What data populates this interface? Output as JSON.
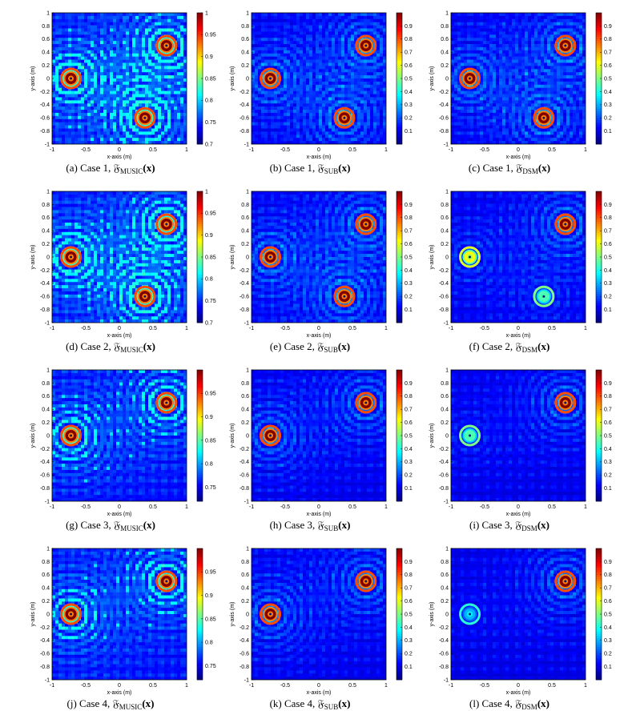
{
  "chart_data": [
    {
      "id": "a",
      "letter": "(a)",
      "case": "Case 1,",
      "func": "𝔉",
      "sub": "MUSIC",
      "arg": "(x)",
      "type": "heatmap",
      "colormap": "jet",
      "xlabel": "x-axis (m)",
      "ylabel": "y-axis (m)",
      "xlim": [
        -1,
        1
      ],
      "ylim": [
        -1,
        1
      ],
      "xticks": [
        "-1",
        "-0.5",
        "0",
        "0.5",
        "1"
      ],
      "yticks": [
        "1",
        "0.8",
        "0.6",
        "0.4",
        "0.2",
        "0",
        "-0.2",
        "-0.4",
        "-0.6",
        "-0.8",
        "-1"
      ],
      "cbar_ticks": [
        "1",
        "0.95",
        "0.9",
        "0.85",
        "0.8",
        "0.75",
        "0.7"
      ],
      "cbar_range": [
        0.7,
        1
      ],
      "peaks": [
        {
          "x": -0.72,
          "y": 0.0,
          "value": 1.0
        },
        {
          "x": 0.7,
          "y": 0.5,
          "value": 1.0
        },
        {
          "x": 0.38,
          "y": -0.6,
          "value": 1.0
        }
      ]
    },
    {
      "id": "b",
      "letter": "(b)",
      "case": "Case 1,",
      "func": "𝔉",
      "sub": "SUB",
      "arg": "(x)",
      "type": "heatmap",
      "colormap": "jet",
      "xlabel": "x-axis (m)",
      "ylabel": "y-axis (m)",
      "xlim": [
        -1,
        1
      ],
      "ylim": [
        -1,
        1
      ],
      "xticks": [
        "-1",
        "-0.5",
        "0",
        "0.5",
        "1"
      ],
      "yticks": [
        "1",
        "0.8",
        "0.6",
        "0.4",
        "0.2",
        "0",
        "-0.2",
        "-0.4",
        "-0.6",
        "-0.8",
        "-1"
      ],
      "cbar_ticks": [
        "0.9",
        "0.8",
        "0.7",
        "0.6",
        "0.5",
        "0.4",
        "0.3",
        "0.2",
        "0.1"
      ],
      "cbar_range": [
        0,
        1
      ],
      "peaks": [
        {
          "x": -0.72,
          "y": 0.0,
          "value": 1.0
        },
        {
          "x": 0.7,
          "y": 0.5,
          "value": 1.0
        },
        {
          "x": 0.38,
          "y": -0.6,
          "value": 1.0
        }
      ]
    },
    {
      "id": "c",
      "letter": "(c)",
      "case": "Case 1,",
      "func": "𝔉",
      "sub": "DSM",
      "arg": "(x)",
      "type": "heatmap",
      "colormap": "jet",
      "xlabel": "x-axis (m)",
      "ylabel": "y-axis (m)",
      "xlim": [
        -1,
        1
      ],
      "ylim": [
        -1,
        1
      ],
      "xticks": [
        "-1",
        "-0.5",
        "0",
        "0.5",
        "1"
      ],
      "yticks": [
        "1",
        "0.8",
        "0.6",
        "0.4",
        "0.2",
        "0",
        "-0.2",
        "-0.4",
        "-0.6",
        "-0.8",
        "-1"
      ],
      "cbar_ticks": [
        "0.9",
        "0.8",
        "0.7",
        "0.6",
        "0.5",
        "0.4",
        "0.3",
        "0.2",
        "0.1"
      ],
      "cbar_range": [
        0,
        1
      ],
      "peaks": [
        {
          "x": -0.72,
          "y": 0.0,
          "value": 1.0
        },
        {
          "x": 0.7,
          "y": 0.5,
          "value": 1.0
        },
        {
          "x": 0.38,
          "y": -0.6,
          "value": 1.0
        }
      ]
    },
    {
      "id": "d",
      "letter": "(d)",
      "case": "Case 2,",
      "func": "𝔉",
      "sub": "MUSIC",
      "arg": "(x)",
      "type": "heatmap",
      "colormap": "jet",
      "xlabel": "x-axis (m)",
      "ylabel": "y-axis (m)",
      "xlim": [
        -1,
        1
      ],
      "ylim": [
        -1,
        1
      ],
      "xticks": [
        "-1",
        "-0.5",
        "0",
        "0.5",
        "1"
      ],
      "yticks": [
        "1",
        "0.8",
        "0.6",
        "0.4",
        "0.2",
        "0",
        "-0.2",
        "-0.4",
        "-0.6",
        "-0.8",
        "-1"
      ],
      "cbar_ticks": [
        "1",
        "0.95",
        "0.9",
        "0.85",
        "0.8",
        "0.75",
        "0.7"
      ],
      "cbar_range": [
        0.7,
        1
      ],
      "peaks": [
        {
          "x": -0.72,
          "y": 0.0,
          "value": 1.0
        },
        {
          "x": 0.7,
          "y": 0.5,
          "value": 1.0
        },
        {
          "x": 0.38,
          "y": -0.6,
          "value": 1.0
        }
      ]
    },
    {
      "id": "e",
      "letter": "(e)",
      "case": "Case 2,",
      "func": "𝔉",
      "sub": "SUB",
      "arg": "(x)",
      "type": "heatmap",
      "colormap": "jet",
      "xlabel": "x-axis (m)",
      "ylabel": "y-axis (m)",
      "xlim": [
        -1,
        1
      ],
      "ylim": [
        -1,
        1
      ],
      "xticks": [
        "-1",
        "-0.5",
        "0",
        "0.5",
        "1"
      ],
      "yticks": [
        "1",
        "0.8",
        "0.6",
        "0.4",
        "0.2",
        "0",
        "-0.2",
        "-0.4",
        "-0.6",
        "-0.8",
        "-1"
      ],
      "cbar_ticks": [
        "0.9",
        "0.8",
        "0.7",
        "0.6",
        "0.5",
        "0.4",
        "0.3",
        "0.2",
        "0.1"
      ],
      "cbar_range": [
        0,
        1
      ],
      "peaks": [
        {
          "x": -0.72,
          "y": 0.0,
          "value": 1.0
        },
        {
          "x": 0.7,
          "y": 0.5,
          "value": 1.0
        },
        {
          "x": 0.38,
          "y": -0.6,
          "value": 1.0
        }
      ]
    },
    {
      "id": "f",
      "letter": "(f)",
      "case": "Case 2,",
      "func": "𝔉",
      "sub": "DSM",
      "arg": "(x)",
      "type": "heatmap",
      "colormap": "jet",
      "xlabel": "x-axis (m)",
      "ylabel": "y-axis (m)",
      "xlim": [
        -1,
        1
      ],
      "ylim": [
        -1,
        1
      ],
      "xticks": [
        "-1",
        "-0.5",
        "0",
        "0.5",
        "1"
      ],
      "yticks": [
        "1",
        "0.8",
        "0.6",
        "0.4",
        "0.2",
        "0",
        "-0.2",
        "-0.4",
        "-0.6",
        "-0.8",
        "-1"
      ],
      "cbar_ticks": [
        "0.9",
        "0.8",
        "0.7",
        "0.6",
        "0.5",
        "0.4",
        "0.3",
        "0.2",
        "0.1"
      ],
      "cbar_range": [
        0,
        1
      ],
      "peaks": [
        {
          "x": -0.72,
          "y": 0.0,
          "value": 0.62
        },
        {
          "x": 0.7,
          "y": 0.5,
          "value": 1.0
        },
        {
          "x": 0.38,
          "y": -0.6,
          "value": 0.45
        }
      ]
    },
    {
      "id": "g",
      "letter": "(g)",
      "case": "Case 3,",
      "func": "𝔉",
      "sub": "MUSIC",
      "arg": "(x)",
      "type": "heatmap",
      "colormap": "jet",
      "xlabel": "x-axis (m)",
      "ylabel": "y-axis (m)",
      "xlim": [
        -1,
        1
      ],
      "ylim": [
        -1,
        1
      ],
      "xticks": [
        "-1",
        "-0.5",
        "0",
        "0.5",
        "1"
      ],
      "yticks": [
        "1",
        "0.8",
        "0.6",
        "0.4",
        "0.2",
        "0",
        "-0.2",
        "-0.4",
        "-0.6",
        "-0.8",
        "-1"
      ],
      "cbar_ticks": [
        "0.95",
        "0.9",
        "0.85",
        "0.8",
        "0.75"
      ],
      "cbar_range": [
        0.72,
        1
      ],
      "peaks": [
        {
          "x": -0.72,
          "y": 0.0,
          "value": 1.0
        },
        {
          "x": 0.7,
          "y": 0.5,
          "value": 1.0
        }
      ]
    },
    {
      "id": "h",
      "letter": "(h)",
      "case": "Case 3,",
      "func": "𝔉",
      "sub": "SUB",
      "arg": "(x)",
      "type": "heatmap",
      "colormap": "jet",
      "xlabel": "x-axis (m)",
      "ylabel": "y-axis (m)",
      "xlim": [
        -1,
        1
      ],
      "ylim": [
        -1,
        1
      ],
      "xticks": [
        "-1",
        "-0.5",
        "0",
        "0.5",
        "1"
      ],
      "yticks": [
        "1",
        "0.8",
        "0.6",
        "0.4",
        "0.2",
        "0",
        "-0.2",
        "-0.4",
        "-0.6",
        "-0.8",
        "-1"
      ],
      "cbar_ticks": [
        "0.9",
        "0.8",
        "0.7",
        "0.6",
        "0.5",
        "0.4",
        "0.3",
        "0.2",
        "0.1"
      ],
      "cbar_range": [
        0,
        1
      ],
      "peaks": [
        {
          "x": -0.72,
          "y": 0.0,
          "value": 1.0
        },
        {
          "x": 0.7,
          "y": 0.5,
          "value": 1.0
        }
      ]
    },
    {
      "id": "i",
      "letter": "(i)",
      "case": "Case 3,",
      "func": "𝔉",
      "sub": "DSM",
      "arg": "(x)",
      "type": "heatmap",
      "colormap": "jet",
      "xlabel": "x-axis (m)",
      "ylabel": "y-axis (m)",
      "xlim": [
        -1,
        1
      ],
      "ylim": [
        -1,
        1
      ],
      "xticks": [
        "-1",
        "-0.5",
        "0",
        "0.5",
        "1"
      ],
      "yticks": [
        "1",
        "0.8",
        "0.6",
        "0.4",
        "0.2",
        "0",
        "-0.2",
        "-0.4",
        "-0.6",
        "-0.8",
        "-1"
      ],
      "cbar_ticks": [
        "0.9",
        "0.8",
        "0.7",
        "0.6",
        "0.5",
        "0.4",
        "0.3",
        "0.2",
        "0.1"
      ],
      "cbar_range": [
        0,
        1
      ],
      "peaks": [
        {
          "x": -0.72,
          "y": 0.0,
          "value": 0.45
        },
        {
          "x": 0.7,
          "y": 0.5,
          "value": 1.0
        }
      ]
    },
    {
      "id": "j",
      "letter": "(j)",
      "case": "Case 4,",
      "func": "𝔉",
      "sub": "MUSIC",
      "arg": "(x)",
      "type": "heatmap",
      "colormap": "jet",
      "xlabel": "x-axis (m)",
      "ylabel": "y-axis (m)",
      "xlim": [
        -1,
        1
      ],
      "ylim": [
        -1,
        1
      ],
      "xticks": [
        "-1",
        "-0.5",
        "0",
        "0.5",
        "1"
      ],
      "yticks": [
        "1",
        "0.8",
        "0.6",
        "0.4",
        "0.2",
        "0",
        "-0.2",
        "-0.4",
        "-0.6",
        "-0.8",
        "-1"
      ],
      "cbar_ticks": [
        "0.95",
        "0.9",
        "0.85",
        "0.8",
        "0.75"
      ],
      "cbar_range": [
        0.72,
        1
      ],
      "peaks": [
        {
          "x": -0.72,
          "y": 0.0,
          "value": 1.0
        },
        {
          "x": 0.7,
          "y": 0.5,
          "value": 1.0
        }
      ]
    },
    {
      "id": "k",
      "letter": "(k)",
      "case": "Case 4,",
      "func": "𝔉",
      "sub": "SUB",
      "arg": "(x)",
      "type": "heatmap",
      "colormap": "jet",
      "xlabel": "x-axis (m)",
      "ylabel": "y-axis (m)",
      "xlim": [
        -1,
        1
      ],
      "ylim": [
        -1,
        1
      ],
      "xticks": [
        "-1",
        "-0.5",
        "0",
        "0.5",
        "1"
      ],
      "yticks": [
        "1",
        "0.8",
        "0.6",
        "0.4",
        "0.2",
        "0",
        "-0.2",
        "-0.4",
        "-0.6",
        "-0.8",
        "-1"
      ],
      "cbar_ticks": [
        "0.9",
        "0.8",
        "0.7",
        "0.6",
        "0.5",
        "0.4",
        "0.3",
        "0.2",
        "0.1"
      ],
      "cbar_range": [
        0,
        1
      ],
      "peaks": [
        {
          "x": -0.72,
          "y": 0.0,
          "value": 1.0
        },
        {
          "x": 0.7,
          "y": 0.5,
          "value": 1.0
        }
      ]
    },
    {
      "id": "l",
      "letter": "(l)",
      "case": "Case 4,",
      "func": "𝔉",
      "sub": "DSM",
      "arg": "(x)",
      "type": "heatmap",
      "colormap": "jet",
      "xlabel": "x-axis (m)",
      "ylabel": "y-axis (m)",
      "xlim": [
        -1,
        1
      ],
      "ylim": [
        -1,
        1
      ],
      "xticks": [
        "-1",
        "-0.5",
        "0",
        "0.5",
        "1"
      ],
      "yticks": [
        "1",
        "0.8",
        "0.6",
        "0.4",
        "0.2",
        "0",
        "-0.2",
        "-0.4",
        "-0.6",
        "-0.8",
        "-1"
      ],
      "cbar_ticks": [
        "0.9",
        "0.8",
        "0.7",
        "0.6",
        "0.5",
        "0.4",
        "0.3",
        "0.2",
        "0.1"
      ],
      "cbar_range": [
        0,
        1
      ],
      "peaks": [
        {
          "x": -0.72,
          "y": 0.0,
          "value": 0.3
        },
        {
          "x": 0.7,
          "y": 0.5,
          "value": 1.0
        }
      ]
    }
  ]
}
